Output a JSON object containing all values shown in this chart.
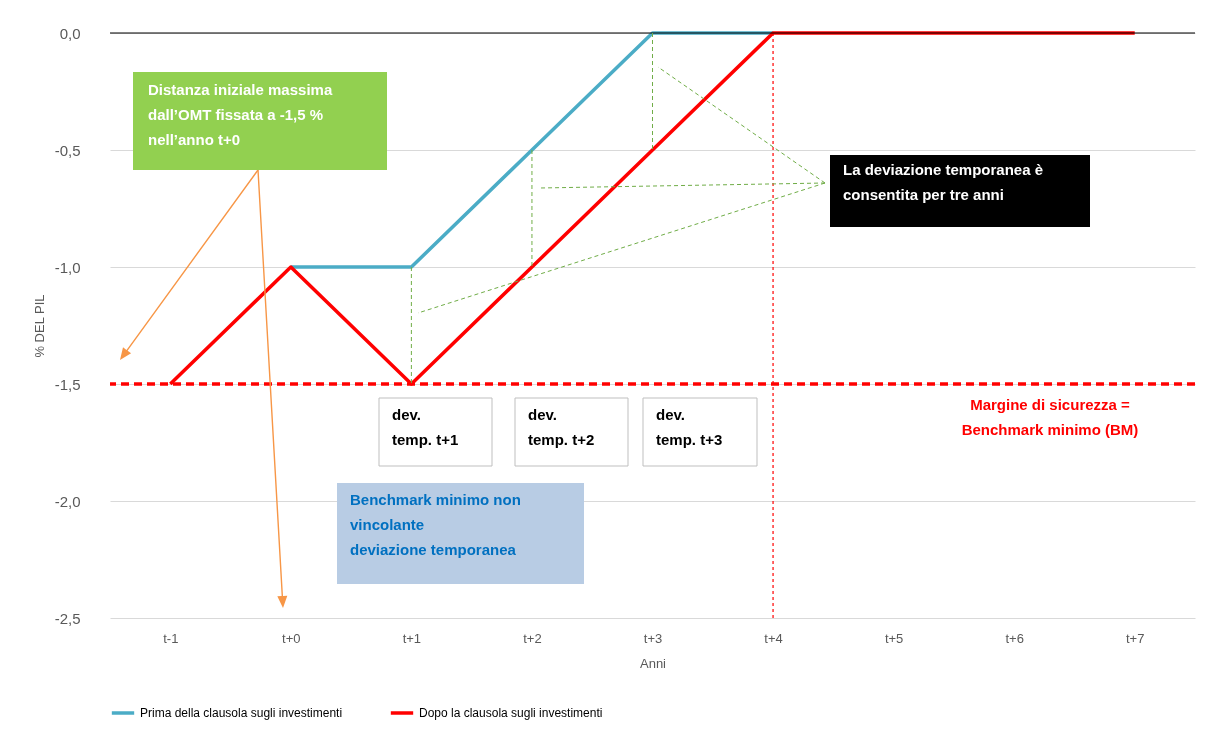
{
  "chart_data": {
    "type": "line",
    "xlabel": "Anni",
    "ylabel": "% DEL PIL",
    "categories": [
      "t-1",
      "t+0",
      "t+1",
      "t+2",
      "t+3",
      "t+4",
      "t+5",
      "t+6",
      "t+7"
    ],
    "series": [
      {
        "name": "Prima della clausola sugli investimenti",
        "color": "#4bacc6",
        "values": [
          null,
          -1.0,
          -1.0,
          -0.5,
          0.0,
          0.0,
          null,
          null,
          null
        ]
      },
      {
        "name": "Dopo la clausola sugli investimenti",
        "color": "#ff0000",
        "values": [
          -1.5,
          -1.0,
          -1.5,
          -1.0,
          -0.5,
          0.0,
          0.0,
          0.0,
          0.0
        ]
      }
    ],
    "ylim": [
      -2.5,
      0.0
    ],
    "yticks": [
      {
        "value": -2.5,
        "label": "-2,5"
      },
      {
        "value": -2.0,
        "label": "-2,0"
      },
      {
        "value": -1.5,
        "label": "-1,5"
      },
      {
        "value": -1.0,
        "label": "-1,0"
      },
      {
        "value": -0.5,
        "label": "-0,5"
      },
      {
        "value": 0.0,
        "label": "0,0"
      }
    ],
    "grid": "y",
    "legend": "bottom",
    "marker": "none",
    "ref_lines": [
      {
        "axis": "y",
        "value": -1.5,
        "label": "Margine di sicurezza =\nBenchmark minimo (BM)",
        "color": "#ff0000",
        "line_style": "dashed"
      },
      {
        "axis": "x",
        "value": "t+4",
        "color": "#ff0000",
        "line_style": "dotted"
      },
      {
        "axis": "y",
        "value": 0.0,
        "color": "#000000",
        "line_style": "solid"
      }
    ],
    "annotations": [
      "Distanza iniziale massima\ndall’OMT fissata a -1,5 %\nnell’anno t+0",
      "La deviazione temporanea è\nconsentita per tre anni",
      "dev.\ntemp.  t+1",
      "dev.\ntemp.  t+2",
      "dev.\ntemp.  t+3",
      "Benchmark minimo non\nvincolante\ndeviazione temporanea"
    ]
  }
}
